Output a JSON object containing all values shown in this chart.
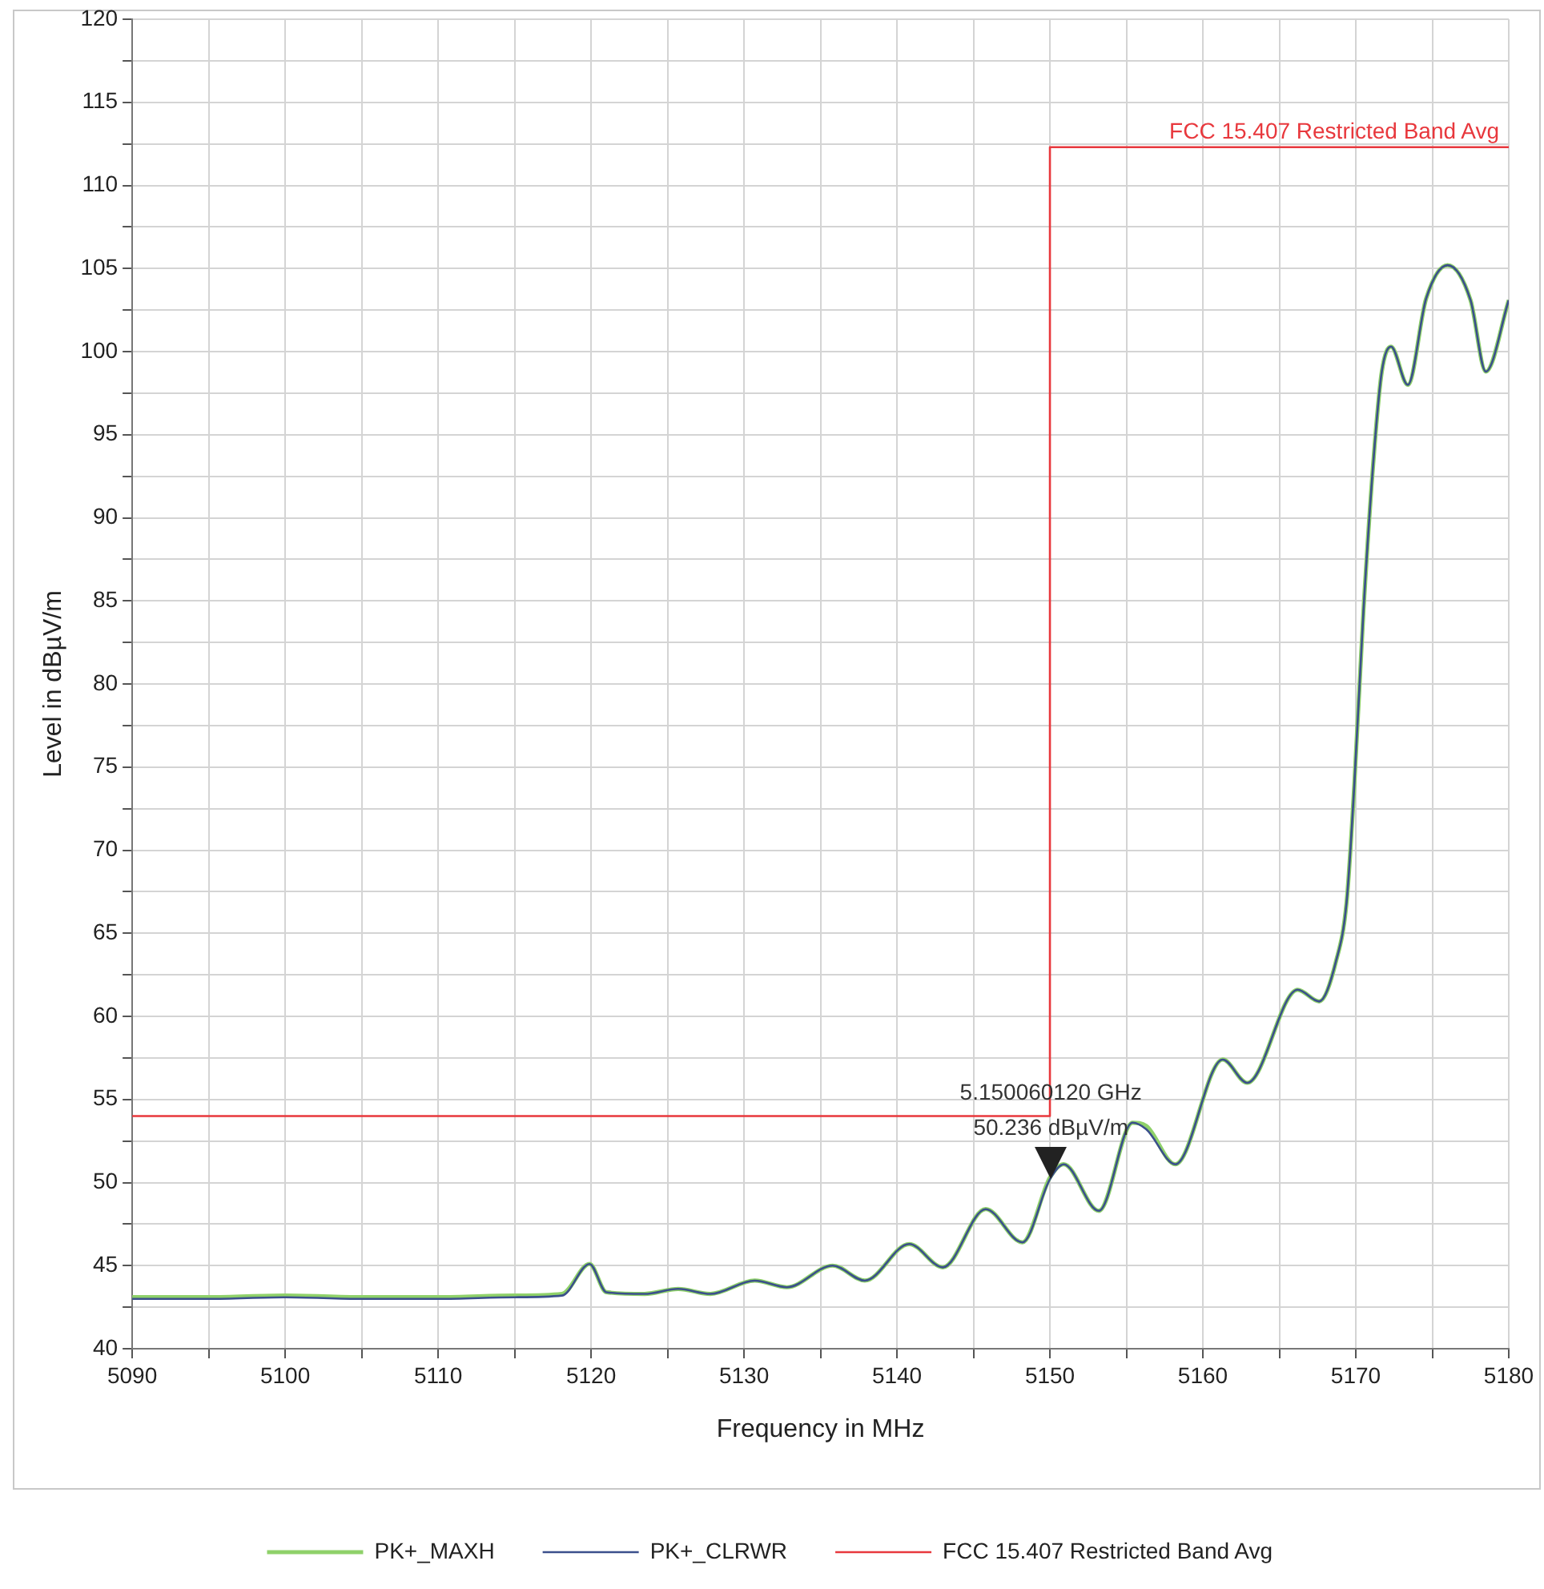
{
  "chart_data": {
    "type": "line",
    "xlabel": "Frequency in MHz",
    "ylabel": "Level in dBµV/m",
    "xlim": [
      5090,
      5180
    ],
    "ylim": [
      40,
      120
    ],
    "xticks": [
      5090,
      {
        "value": 5095,
        "label": null
      },
      5100,
      {
        "value": 5105,
        "label": null
      },
      5110,
      {
        "value": 5115,
        "label": null
      },
      5120,
      {
        "value": 5125,
        "label": null
      },
      5130,
      {
        "value": 5135,
        "label": null
      },
      5140,
      {
        "value": 5145,
        "label": null
      },
      5150,
      {
        "value": 5155,
        "label": null
      },
      5160,
      {
        "value": 5165,
        "label": null
      },
      5170,
      {
        "value": 5175,
        "label": null
      },
      5180
    ],
    "yticks": [
      40,
      {
        "value": 42.5,
        "label": null
      },
      45,
      {
        "value": 47.5,
        "label": null
      },
      50,
      {
        "value": 52.5,
        "label": null
      },
      55,
      {
        "value": 57.5,
        "label": null
      },
      60,
      {
        "value": 62.5,
        "label": null
      },
      65,
      {
        "value": 67.5,
        "label": null
      },
      70,
      {
        "value": 72.5,
        "label": null
      },
      75,
      {
        "value": 77.5,
        "label": null
      },
      80,
      {
        "value": 82.5,
        "label": null
      },
      85,
      {
        "value": 87.5,
        "label": null
      },
      90,
      {
        "value": 92.5,
        "label": null
      },
      95,
      {
        "value": 97.5,
        "label": null
      },
      100,
      {
        "value": 102.5,
        "label": null
      },
      105,
      {
        "value": 107.5,
        "label": null
      },
      110,
      {
        "value": 112.5,
        "label": null
      },
      115,
      {
        "value": 117.5,
        "label": null
      },
      120
    ],
    "grid": true,
    "legend": "bottom",
    "marker": "none",
    "line_style": "solid",
    "series": [
      {
        "name": "PK+_MAXH",
        "color": "#8fd16a",
        "x": [
          5090,
          5095,
          5100,
          5105,
          5110,
          5115,
          5118.1,
          5119.9,
          5121,
          5123.5,
          5125.7,
          5127.8,
          5130.7,
          5132.8,
          5135.8,
          5137.9,
          5140.8,
          5143,
          5145.8,
          5148.2,
          5150,
          5150.9,
          5153.2,
          5155.4,
          5156.3,
          5158.2,
          5161.3,
          5162.9,
          5166.2,
          5167.6,
          5168.7,
          5169.4,
          5169.9,
          5170.5,
          5171.2,
          5171.7,
          5172.3,
          5173.4,
          5174.6,
          5176,
          5177.5,
          5178.5,
          5180
        ],
        "values": [
          43.1,
          43.1,
          43.2,
          43.1,
          43.1,
          43.2,
          43.3,
          45.1,
          43.4,
          43.3,
          43.6,
          43.3,
          44.1,
          43.7,
          45.0,
          44.1,
          46.3,
          44.9,
          48.4,
          46.4,
          50.3,
          51.1,
          48.3,
          53.6,
          53.4,
          51.1,
          57.4,
          56.0,
          61.6,
          60.9,
          63.3,
          66.9,
          73.9,
          84.4,
          94.0,
          98.8,
          100.3,
          98.0,
          103.2,
          105.2,
          103.1,
          98.8,
          103.1
        ]
      },
      {
        "name": "PK+_CLRWR",
        "color": "#3b4f8c",
        "x": [
          5090,
          5095,
          5100,
          5105,
          5110,
          5115,
          5118.1,
          5119.9,
          5121,
          5123.5,
          5125.7,
          5127.8,
          5130.7,
          5132.8,
          5135.8,
          5137.9,
          5140.8,
          5143,
          5145.8,
          5148.2,
          5150,
          5150.9,
          5153.2,
          5155.4,
          5156.3,
          5158.2,
          5161.3,
          5162.9,
          5166.2,
          5167.6,
          5168.7,
          5169.4,
          5169.9,
          5170.5,
          5171.2,
          5171.7,
          5172.3,
          5173.4,
          5174.6,
          5176,
          5177.5,
          5178.5,
          5180
        ],
        "values": [
          43.0,
          43.0,
          43.1,
          43.0,
          43.0,
          43.1,
          43.2,
          45.1,
          43.4,
          43.3,
          43.6,
          43.3,
          44.1,
          43.7,
          45.0,
          44.1,
          46.3,
          44.9,
          48.4,
          46.4,
          50.2,
          51.1,
          48.3,
          53.6,
          53.2,
          51.1,
          57.4,
          56.0,
          61.6,
          60.9,
          63.3,
          66.9,
          73.9,
          84.4,
          94.0,
          98.8,
          100.3,
          98.0,
          103.2,
          105.2,
          103.1,
          98.8,
          103.1
        ]
      },
      {
        "name": "FCC 15.407 Restricted Band Avg",
        "color": "#e8383d",
        "x": [
          5090,
          5150,
          5150,
          5180
        ],
        "values": [
          54,
          54,
          112.3,
          112.3
        ]
      }
    ],
    "annotations": [
      {
        "text": "5.150060120 GHz\n50.236 dBµV/m",
        "x": 5150.06,
        "y": 50.236
      },
      {
        "text": "FCC 15.407 Restricted Band Avg",
        "x": 5180,
        "y": 112.3
      }
    ]
  }
}
